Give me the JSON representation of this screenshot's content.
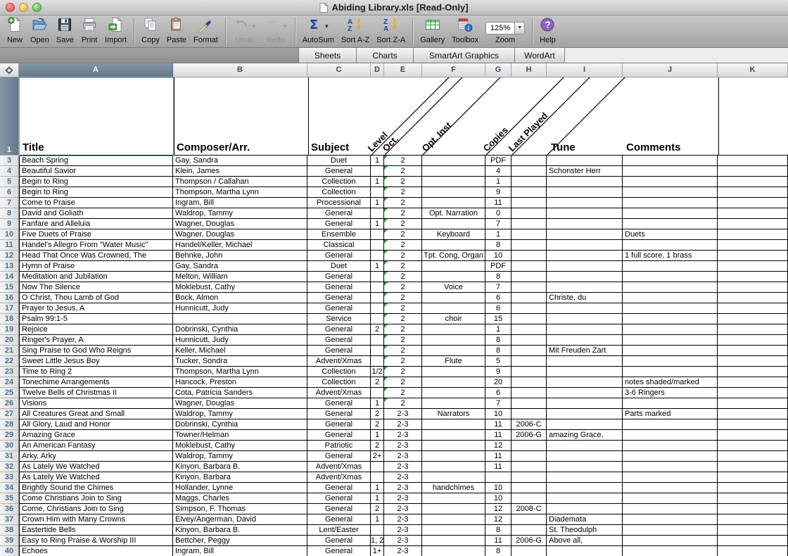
{
  "window": {
    "title": "Abiding Library.xls  [Read-Only]"
  },
  "toolbar": {
    "groups": [
      {
        "items": [
          {
            "id": "new",
            "label": "New"
          },
          {
            "id": "open",
            "label": "Open"
          },
          {
            "id": "save",
            "label": "Save"
          },
          {
            "id": "print",
            "label": "Print"
          },
          {
            "id": "import",
            "label": "Import"
          }
        ]
      },
      {
        "items": [
          {
            "id": "copy",
            "label": "Copy"
          },
          {
            "id": "paste",
            "label": "Paste"
          },
          {
            "id": "format",
            "label": "Format"
          }
        ]
      },
      {
        "items": [
          {
            "id": "undo",
            "label": "Undo",
            "disabled": true,
            "dropdown": true
          },
          {
            "id": "redo",
            "label": "Redo",
            "disabled": true,
            "dropdown": true
          }
        ]
      },
      {
        "items": [
          {
            "id": "autosum",
            "label": "AutoSum",
            "dropdown": true
          },
          {
            "id": "sortaz",
            "label": "Sort A-Z"
          },
          {
            "id": "sortza",
            "label": "Sort Z-A"
          }
        ]
      },
      {
        "items": [
          {
            "id": "gallery",
            "label": "Gallery"
          },
          {
            "id": "toolbox",
            "label": "Toolbox"
          },
          {
            "id": "zoom",
            "label": "Zoom",
            "value": "125%"
          }
        ]
      },
      {
        "items": [
          {
            "id": "help",
            "label": "Help"
          }
        ]
      }
    ]
  },
  "tabs": [
    "Sheets",
    "Charts",
    "SmartArt Graphics",
    "WordArt"
  ],
  "sheet": {
    "columns": [
      "A",
      "B",
      "C",
      "D",
      "E",
      "F",
      "G",
      "H",
      "I",
      "J",
      "K"
    ],
    "selected_column": "A",
    "header_row": {
      "number": "1",
      "title": "Title",
      "composer": "Composer/Arr.",
      "subject": "Subject",
      "rotated": [
        "Level",
        "Oct.",
        "Opt. Inst",
        "Copies",
        "Last Played"
      ],
      "tune": "Tune",
      "comments": "Comments"
    },
    "rows": [
      {
        "n": "3",
        "c": [
          "Beach Spring",
          "Gay, Sandra",
          "Duet",
          "1",
          "2",
          "",
          "PDF",
          "",
          "",
          ""
        ]
      },
      {
        "n": "4",
        "c": [
          "Beautiful Savior",
          "Klein, James",
          "General",
          "",
          "2",
          "",
          "4",
          "",
          "Schonster Herr",
          ""
        ]
      },
      {
        "n": "5",
        "c": [
          "Begin to Ring",
          "Thompson / Callahan",
          "Collection",
          "1",
          "2",
          "",
          "1",
          "",
          "",
          ""
        ]
      },
      {
        "n": "6",
        "c": [
          "Begin to Ring",
          "Thompson, Martha Lynn",
          "Collection",
          "",
          "2",
          "",
          "9",
          "",
          "",
          ""
        ]
      },
      {
        "n": "7",
        "c": [
          "Come to Praise",
          "Ingram, Bill",
          "Processional",
          "1",
          "2",
          "",
          "11",
          "",
          "",
          ""
        ]
      },
      {
        "n": "8",
        "c": [
          "David and Goliath",
          "Waldrop, Tammy",
          "General",
          "",
          "2",
          "Opt. Narration",
          "0",
          "",
          "",
          ""
        ]
      },
      {
        "n": "9",
        "c": [
          "Fanfare and Alleluia",
          "Wagner, Douglas",
          "General",
          "1",
          "2",
          "",
          "7",
          "",
          "",
          ""
        ]
      },
      {
        "n": "10",
        "c": [
          "Five Duets of Praise",
          "Wagner, Douglas",
          "Ensemble",
          "",
          "2",
          "Keyboard",
          "1",
          "",
          "",
          "Duets"
        ]
      },
      {
        "n": "11",
        "c": [
          "Handel's Allegro From \"Water Music\"",
          "Handel/Keller, Michael",
          "Classical",
          "",
          "2",
          "",
          "8",
          "",
          "",
          ""
        ]
      },
      {
        "n": "12",
        "c": [
          "Head That Once Was Crowned, The",
          "Behnke, John",
          "General",
          "",
          "2",
          "Tpt. Cong, Organ",
          "10",
          "",
          "",
          "1 full score, 1 brass"
        ]
      },
      {
        "n": "13",
        "c": [
          "Hymn of Praise",
          "Gay, Sandra",
          "Duet",
          "1",
          "2",
          "",
          "PDF",
          "",
          "",
          ""
        ]
      },
      {
        "n": "14",
        "c": [
          "Meditation and Jubilation",
          "Melton, William",
          "General",
          "",
          "2",
          "",
          "8",
          "",
          "",
          ""
        ]
      },
      {
        "n": "15",
        "c": [
          "Now The Silence",
          "Moklebust, Cathy",
          "General",
          "",
          "2",
          "Voice",
          "7",
          "",
          "",
          ""
        ]
      },
      {
        "n": "16",
        "c": [
          "O Christ, Thou Lamb of God",
          "Bock, Almon",
          "General",
          "",
          "2",
          "",
          "6",
          "",
          "Christe, du",
          ""
        ]
      },
      {
        "n": "17",
        "c": [
          "Prayer to Jesus, A",
          "Hunnicutt, Judy",
          "General",
          "",
          "2",
          "",
          "6",
          "",
          "",
          ""
        ]
      },
      {
        "n": "18",
        "c": [
          "Psalm 99:1-5",
          "",
          "Service",
          "",
          "2",
          "choir",
          "15",
          "",
          "",
          ""
        ]
      },
      {
        "n": "19",
        "c": [
          "Rejoice",
          "Dobrinski, Cynthia",
          "General",
          "2",
          "2",
          "",
          "1",
          "",
          "",
          ""
        ]
      },
      {
        "n": "20",
        "c": [
          "Ringer's Prayer, A",
          "Hunnicutt, Judy",
          "General",
          "",
          "2",
          "",
          "8",
          "",
          "",
          ""
        ]
      },
      {
        "n": "21",
        "c": [
          "Sing Praise to God Who Reigns",
          "Keller, Michael",
          "General",
          "",
          "2",
          "",
          "8",
          "",
          "Mit Freuden Zart",
          ""
        ]
      },
      {
        "n": "22",
        "c": [
          "Sweet Little Jesus Boy",
          "Tucker, Sondra",
          "Advent/Xmas",
          "",
          "2",
          "Flute",
          "5",
          "",
          "",
          ""
        ]
      },
      {
        "n": "23",
        "c": [
          "Time to Ring 2",
          "Thompson, Martha Lynn",
          "Collection",
          "1/2",
          "2",
          "",
          "9",
          "",
          "",
          ""
        ]
      },
      {
        "n": "24",
        "c": [
          "Tonechime Arrangements",
          "Hancock, Preston",
          "Collection",
          "2",
          "2",
          "",
          "20",
          "",
          "",
          "notes shaded/marked"
        ]
      },
      {
        "n": "25",
        "c": [
          "Twelve Bells of Christmas II",
          "Cota, Patricia Sanders",
          "Advent/Xmas",
          "",
          "2",
          "",
          "6",
          "",
          "",
          "3-6 Ringers"
        ]
      },
      {
        "n": "26",
        "c": [
          "Visions",
          "Wagner, Douglas",
          "General",
          "1",
          "2",
          "",
          "7",
          "",
          "",
          ""
        ]
      },
      {
        "n": "27",
        "c": [
          "All Creatures Great and Small",
          "Waldrop, Tammy",
          "General",
          "2",
          "2-3",
          "Narrators",
          "10",
          "",
          "",
          "Parts marked"
        ]
      },
      {
        "n": "28",
        "c": [
          "All Glory, Laud and Honor",
          "Dobrinski, Cynthia",
          "General",
          "2",
          "2-3",
          "",
          "11",
          "2006-C",
          "",
          ""
        ]
      },
      {
        "n": "29",
        "c": [
          "Amazing Grace",
          "Towner/Helman",
          "General",
          "1",
          "2-3",
          "",
          "11",
          "2006-G",
          "amazing Grace,",
          ""
        ]
      },
      {
        "n": "30",
        "c": [
          "An American Fantasy",
          "Moklebust, Cathy",
          "Patriotic",
          "2",
          "2-3",
          "",
          "12",
          "",
          "",
          ""
        ]
      },
      {
        "n": "31",
        "c": [
          "Arky, Arky",
          "Waldrop, Tammy",
          "General",
          "2+",
          "2-3",
          "",
          "11",
          "",
          "",
          ""
        ]
      },
      {
        "n": "32",
        "c": [
          "As Lately We Watched",
          "Kinyon, Barbara B.",
          "Advent/Xmas",
          "",
          "2-3",
          "",
          "11",
          "",
          "",
          ""
        ]
      },
      {
        "n": "33",
        "c": [
          "As Lately We Watched",
          "Kinyon, Barbara",
          "Advent/Xmas",
          "",
          "2-3",
          "",
          "",
          "",
          "",
          ""
        ]
      },
      {
        "n": "34",
        "c": [
          "Brightly Sound the Chimes",
          "Hollander, Lynne",
          "General",
          "1",
          "2-3",
          "handchimes",
          "10",
          "",
          "",
          ""
        ]
      },
      {
        "n": "35",
        "c": [
          "Come Christians Join to Sing",
          "Maggs, Charles",
          "General",
          "1",
          "2-3",
          "",
          "10",
          "",
          "",
          ""
        ]
      },
      {
        "n": "36",
        "c": [
          "Come, Christians Join to Sing",
          "Simpson, F. Thomas",
          "General",
          "2",
          "2-3",
          "",
          "12",
          "2008-C",
          "",
          ""
        ]
      },
      {
        "n": "37",
        "c": [
          "Crown Him with Many Crowns",
          "Elvey/Angerman, David",
          "General",
          "1",
          "2-3",
          "",
          "12",
          "",
          "Diademata",
          ""
        ]
      },
      {
        "n": "38",
        "c": [
          "Eastertide Bells",
          "Kinyon, Barbara B.",
          "Lent/Easter",
          "",
          "2-3",
          "",
          "8",
          "",
          "St. Theodulph",
          ""
        ]
      },
      {
        "n": "39",
        "c": [
          "Easy to Ring Praise & Worship III",
          "Bettcher, Peggy",
          "General",
          "1, 2",
          "2-3",
          "",
          "11",
          "2006-G",
          "Above all,",
          ""
        ]
      },
      {
        "n": "40",
        "c": [
          "Echoes",
          "Ingram, Bill",
          "General",
          "1+",
          "2-3",
          "",
          "8",
          "",
          "",
          ""
        ]
      }
    ]
  },
  "colors": {
    "selection_border": "#79a4d8",
    "selected_header": "#62788c",
    "error_triangle": "#2f9e3f",
    "grid_border": "#000000"
  }
}
